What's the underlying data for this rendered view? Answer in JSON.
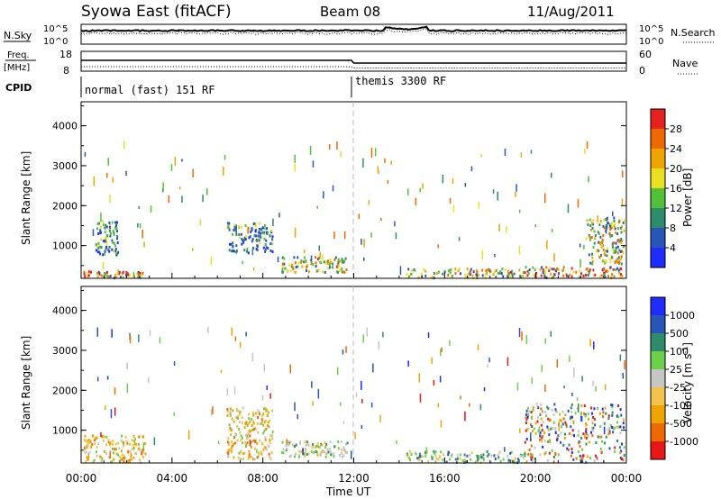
{
  "header": {
    "title_left": "Syowa East (fitACF)",
    "title_center": "Beam 08",
    "title_right": "11/Aug/2011"
  },
  "nsky_panel": {
    "left_label": "N.Sky",
    "right_label": "N.Search",
    "ticks_left": [
      "10^5",
      "10^0"
    ],
    "ticks_right": [
      "10^5",
      "10^0"
    ]
  },
  "freq_panel": {
    "left_label_1": "Freq.",
    "left_label_2": "[MHz]",
    "right_label": "Nave",
    "ticks_left": [
      "18",
      "8"
    ],
    "ticks_right": [
      "60",
      "0"
    ]
  },
  "cpid": {
    "label": "CPID",
    "mode_1": "normal (fast) 151 RF",
    "mode_2": "themis 3300 RF"
  },
  "colors": {
    "power": [
      "#1e2cff",
      "#2a55b8",
      "#2f8c6a",
      "#52c13a",
      "#e8e020",
      "#f0a400",
      "#ee6a00",
      "#e82020"
    ],
    "velocity": [
      "#e81818",
      "#ee6a00",
      "#f0a400",
      "#f2c24a",
      "#c6c6c6",
      "#6cd04a",
      "#2f8c6a",
      "#2a55b8",
      "#1e2cff"
    ]
  },
  "chart_data": [
    {
      "type": "heatmap",
      "name": "power",
      "xlabel": "",
      "ylabel": "Slant Range [km]",
      "x_range": [
        "00:00",
        "24:00"
      ],
      "ylim": [
        180,
        4600
      ],
      "yticks": [
        "1000",
        "2000",
        "3000",
        "4000"
      ],
      "colorbar_label": "Power [dB]",
      "colorbar_ticks": [
        "28",
        "24",
        "20",
        "16",
        "12",
        "8",
        "4"
      ],
      "regions": [
        {
          "t_start": 0.1,
          "t_end": 2.8,
          "range_min": 220,
          "range_max": 380,
          "level": "high"
        },
        {
          "t_start": 0.6,
          "t_end": 1.6,
          "range_min": 800,
          "range_max": 1650,
          "level": "low"
        },
        {
          "t_start": 6.4,
          "t_end": 8.4,
          "range_min": 850,
          "range_max": 1600,
          "level": "low"
        },
        {
          "t_start": 8.8,
          "t_end": 11.7,
          "range_min": 350,
          "range_max": 750,
          "level": "mid"
        },
        {
          "t_start": 14.3,
          "t_end": 19.5,
          "range_min": 220,
          "range_max": 450,
          "level": "mid"
        },
        {
          "t_start": 19.5,
          "t_end": 23.8,
          "range_min": 220,
          "range_max": 500,
          "level": "high"
        },
        {
          "t_start": 22.2,
          "t_end": 23.9,
          "range_min": 550,
          "range_max": 1750,
          "level": "mid"
        }
      ]
    },
    {
      "type": "heatmap",
      "name": "velocity",
      "xlabel": "Time UT",
      "ylabel": "Slant Range [km]",
      "x_range": [
        "00:00",
        "24:00"
      ],
      "xticks": [
        "00:00",
        "04:00",
        "08:00",
        "12:00",
        "16:00",
        "20:00",
        "00:00"
      ],
      "ylim": [
        180,
        4600
      ],
      "yticks": [
        "1000",
        "2000",
        "3000",
        "4000"
      ],
      "colorbar_label": "Velocity [m s^-1]",
      "colorbar_ticks": [
        "1000",
        "500",
        "100",
        "25",
        "-25",
        "-100",
        "-500",
        "-1000"
      ],
      "regions": [
        {
          "t_start": 0.1,
          "t_end": 2.8,
          "range_min": 220,
          "range_max": 900,
          "level": "negative"
        },
        {
          "t_start": 6.4,
          "t_end": 8.4,
          "range_min": 300,
          "range_max": 1600,
          "level": "negative"
        },
        {
          "t_start": 8.8,
          "t_end": 11.7,
          "range_min": 350,
          "range_max": 750,
          "level": "near-zero"
        },
        {
          "t_start": 14.3,
          "t_end": 19.5,
          "range_min": 220,
          "range_max": 500,
          "level": "positive"
        },
        {
          "t_start": 19.5,
          "t_end": 23.9,
          "range_min": 220,
          "range_max": 1700,
          "level": "mixed"
        }
      ]
    }
  ]
}
